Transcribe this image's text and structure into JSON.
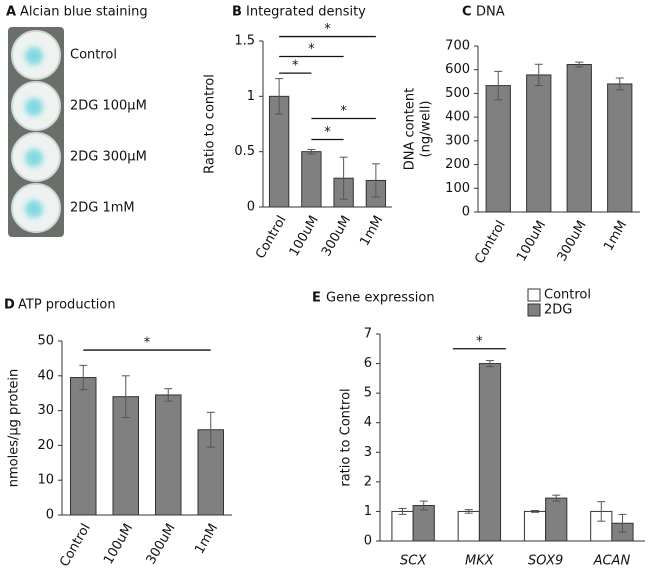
{
  "panel_a": {
    "label": "A",
    "title": "Alcian blue staining",
    "wells": [
      "Control",
      "2DG 100μM",
      "2DG 300μM",
      "2DG 1mM"
    ]
  },
  "chart_data": [
    {
      "type": "bar",
      "label": "B",
      "title": "Integrated density",
      "ylabel": [
        "Ratio to control"
      ],
      "categories": [
        "Control",
        "100uM",
        "300uM",
        "1mM"
      ],
      "values": [
        1.0,
        0.5,
        0.26,
        0.24
      ],
      "errors": [
        0.16,
        0.02,
        0.19,
        0.15
      ],
      "color": "#808080",
      "ylim": [
        0,
        1.5
      ],
      "yticks": [
        0,
        0.5,
        1,
        1.5
      ],
      "brackets": [
        {
          "label": "*",
          "categories": [
            "Control",
            "100uM"
          ],
          "y": 1.21
        },
        {
          "label": "*",
          "categories": [
            "Control",
            "300uM"
          ],
          "y": 1.36
        },
        {
          "label": "*",
          "categories": [
            "Control",
            "1mM"
          ],
          "y": 1.54
        },
        {
          "label": "*",
          "categories": [
            "100uM",
            "1mM"
          ],
          "y": 0.8
        },
        {
          "label": "*",
          "categories": [
            "100uM",
            "300uM"
          ],
          "y": 0.61
        }
      ]
    },
    {
      "type": "bar",
      "label": "C",
      "title": "DNA",
      "ylabel": [
        "DNA content",
        "(ng/well)"
      ],
      "categories": [
        "Control",
        "100uM",
        "300uM",
        "1mM"
      ],
      "values": [
        533,
        578,
        622,
        540
      ],
      "errors": [
        60,
        45,
        10,
        25
      ],
      "color": "#808080",
      "ylim": [
        0,
        700
      ],
      "yticks": [
        0,
        100,
        200,
        300,
        400,
        500,
        600,
        700
      ],
      "brackets": []
    },
    {
      "type": "bar",
      "label": "D",
      "title": "ATP production",
      "ylabel": [
        "nmoles/µg protein"
      ],
      "categories": [
        "Control",
        "100uM",
        "300uM",
        "1mM"
      ],
      "values": [
        39.5,
        34,
        34.5,
        24.5
      ],
      "errors": [
        3.5,
        6,
        1.8,
        5
      ],
      "color": "#808080",
      "ylim": [
        0,
        50
      ],
      "yticks": [
        0,
        10,
        20,
        30,
        40,
        50
      ],
      "brackets": [
        {
          "label": "*",
          "categories": [
            "Control",
            "1mM"
          ],
          "y": 47.4
        }
      ]
    },
    {
      "type": "grouped-bar",
      "label": "E",
      "title": "Gene expression",
      "ylabel": [
        "ratio to Control"
      ],
      "categories": [
        "SCX",
        "MKX",
        "SOX9",
        "ACAN"
      ],
      "series": [
        {
          "name": "Control",
          "color": "#ffffff",
          "values": [
            1,
            1,
            1,
            1
          ],
          "errors": [
            0.1,
            0.06,
            0.03,
            0.33
          ]
        },
        {
          "name": "2DG",
          "color": "#808080",
          "values": [
            1.2,
            6.0,
            1.45,
            0.6
          ],
          "errors": [
            0.15,
            0.1,
            0.1,
            0.3
          ]
        }
      ],
      "ylim": [
        0,
        7
      ],
      "yticks": [
        0,
        1,
        2,
        3,
        4,
        5,
        6,
        7
      ],
      "brackets": [
        {
          "label": "*",
          "categories": [
            "MKX"
          ],
          "y": 6.5
        }
      ]
    }
  ]
}
